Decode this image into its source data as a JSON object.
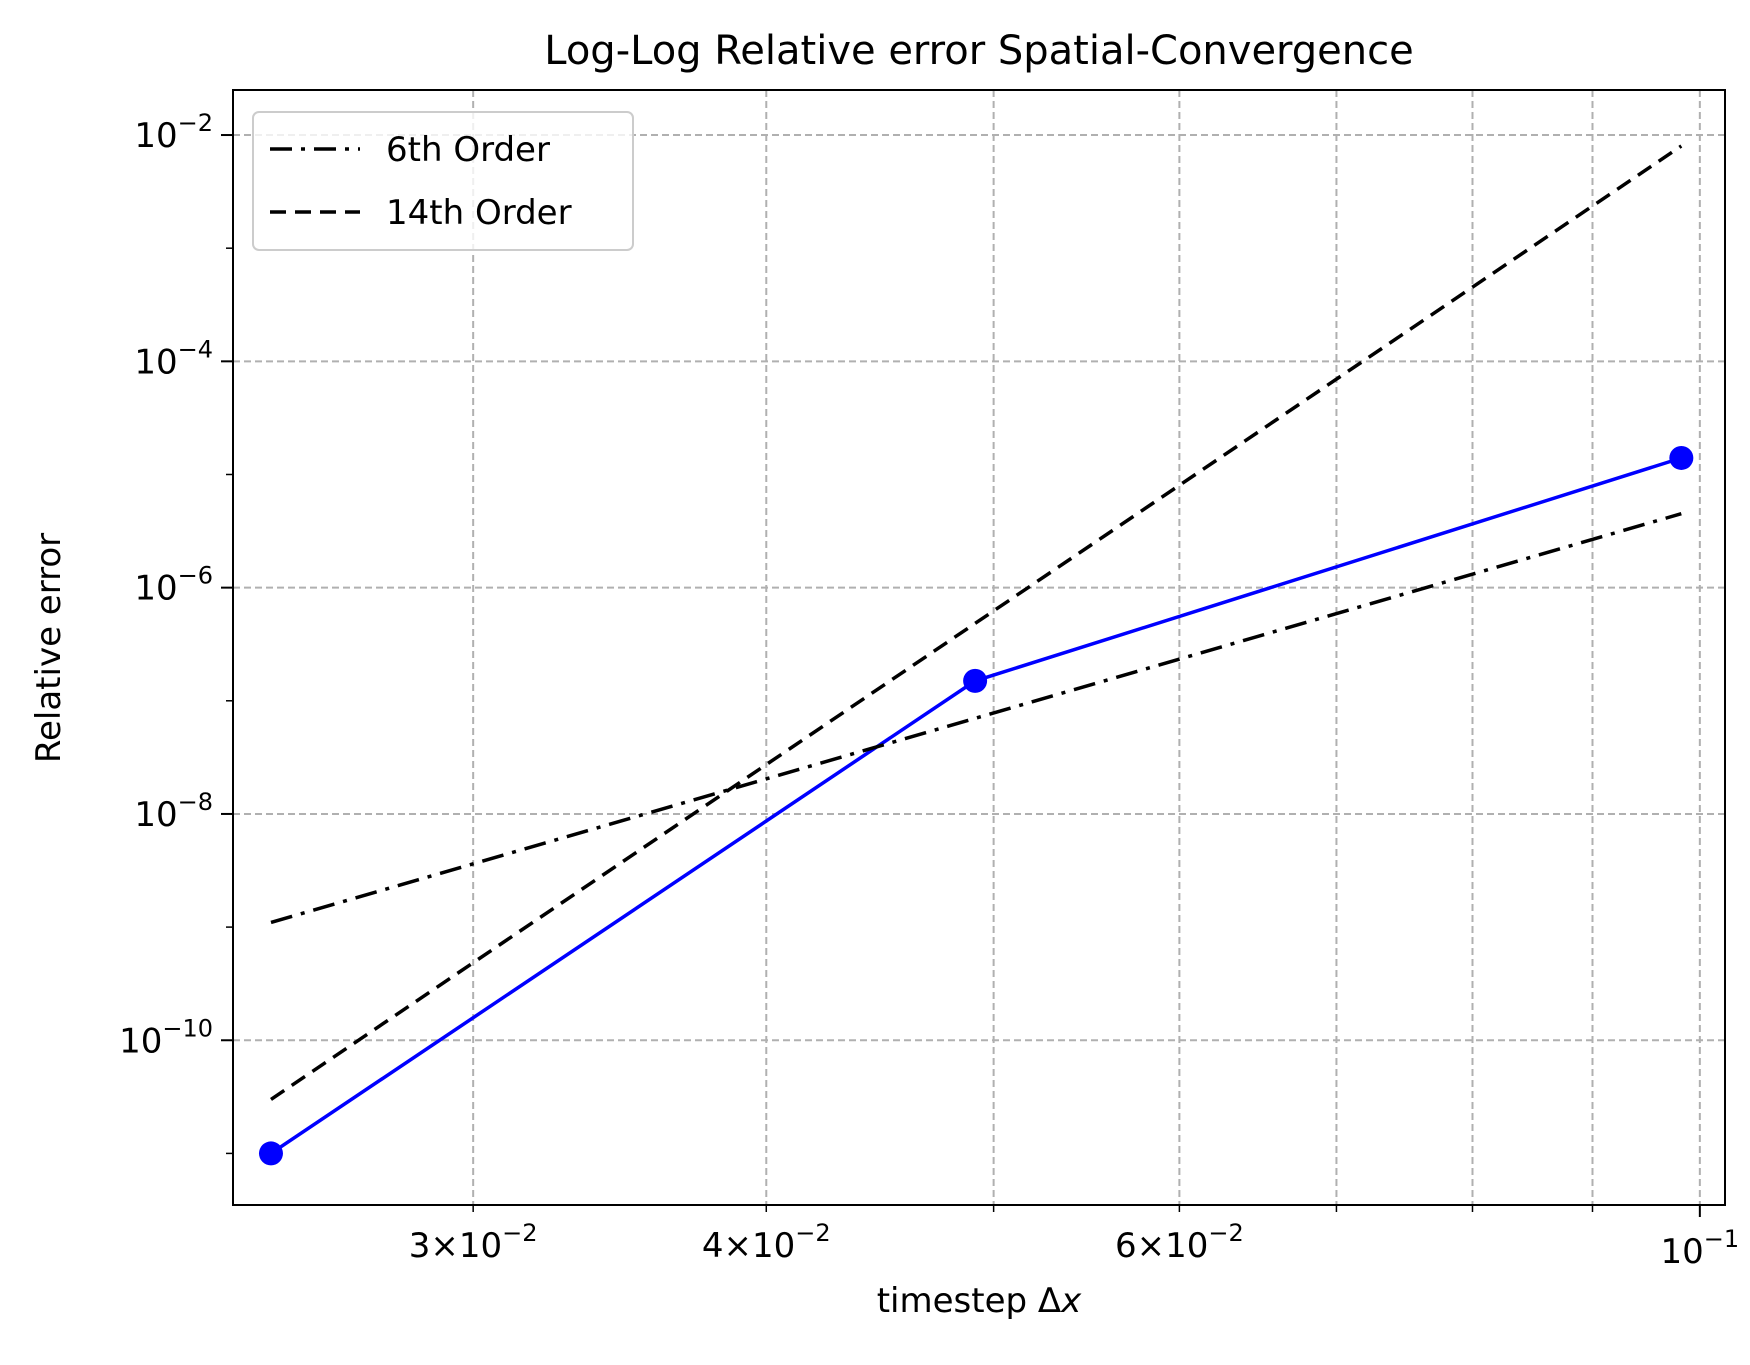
{
  "chart_data": {
    "type": "line",
    "title": "Log-Log Relative error Spatial-Convergence",
    "xlabel": "timestep Δx",
    "ylabel": "Relative error",
    "xscale": "log",
    "yscale": "log",
    "xlim": [
      0.0237,
      0.1025
    ],
    "ylim": [
      3.5e-12,
      0.025
    ],
    "grid": true,
    "legend_position": "top-left",
    "x_major_ticks": [
      {
        "value": 0.1,
        "mantissa": "",
        "exponent": "−1",
        "base": "10"
      }
    ],
    "x_minor_ticks": [
      {
        "value": 0.03,
        "mantissa": "3",
        "exponent": "−2",
        "base": "10"
      },
      {
        "value": 0.04,
        "mantissa": "4",
        "exponent": "−2",
        "base": "10"
      },
      {
        "value": 0.05,
        "mantissa": "",
        "exponent": "",
        "base": ""
      },
      {
        "value": 0.06,
        "mantissa": "6",
        "exponent": "−2",
        "base": "10"
      },
      {
        "value": 0.07,
        "mantissa": "",
        "exponent": "",
        "base": ""
      },
      {
        "value": 0.08,
        "mantissa": "",
        "exponent": "",
        "base": ""
      },
      {
        "value": 0.09,
        "mantissa": "",
        "exponent": "",
        "base": ""
      }
    ],
    "y_ticks": [
      {
        "value": 1e-10,
        "base": "10",
        "exponent": "−10"
      },
      {
        "value": 1e-08,
        "base": "10",
        "exponent": "−8"
      },
      {
        "value": 1e-06,
        "base": "10",
        "exponent": "−6"
      },
      {
        "value": 0.0001,
        "base": "10",
        "exponent": "−4"
      },
      {
        "value": 0.01,
        "base": "10",
        "exponent": "−2"
      }
    ],
    "series": [
      {
        "name": "",
        "color": "#0000ff",
        "style": "solid",
        "marker": "circle",
        "x": [
          0.0246,
          0.0491,
          0.0982
        ],
        "y": [
          1e-11,
          1.5e-07,
          1.4e-05
        ]
      },
      {
        "name": "6th Order",
        "color": "#000000",
        "style": "dashdot",
        "marker": "none",
        "x": [
          0.0246,
          0.0982
        ],
        "y": [
          1.1e-09,
          4.5e-06
        ]
      },
      {
        "name": "14th Order",
        "color": "#000000",
        "style": "dashed",
        "marker": "none",
        "x": [
          0.0246,
          0.0982
        ],
        "y": [
          3e-11,
          0.008
        ]
      }
    ]
  }
}
